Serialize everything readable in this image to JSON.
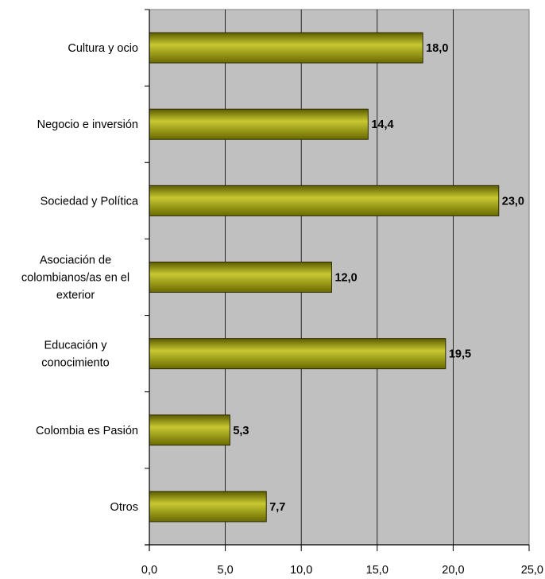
{
  "chart_data": {
    "type": "bar",
    "orientation": "horizontal",
    "categories": [
      [
        "Cultura y ocio"
      ],
      [
        "Negocio e inversión"
      ],
      [
        "Sociedad y Política"
      ],
      [
        "Asociación de",
        "colombianos/as en el",
        "exterior"
      ],
      [
        "Educación y",
        "conocimiento"
      ],
      [
        "Colombia es Pasión"
      ],
      [
        "Otros"
      ]
    ],
    "values": [
      18.0,
      14.4,
      23.0,
      12.0,
      19.5,
      5.3,
      7.7
    ],
    "value_labels": [
      "18,0",
      "14,4",
      "23,0",
      "12,0",
      "19,5",
      "5,3",
      "7,7"
    ],
    "xlim": [
      0,
      25
    ],
    "x_ticks": [
      "0,0",
      "5,0",
      "10,0",
      "15,0",
      "20,0",
      "25,0"
    ],
    "grid": true,
    "legend": "none",
    "title": "",
    "xlabel": "",
    "ylabel": ""
  },
  "colors": {
    "plot_background": "#c0c0c0",
    "bar_fill": "#808000",
    "bar_highlight": "#c8c832",
    "bar_dark": "#3c3c00",
    "grid": "#000000"
  }
}
